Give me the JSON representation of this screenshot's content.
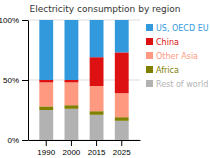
{
  "chart_data": {
    "type": "bar",
    "stacked": true,
    "title": "Electricity consumption by region",
    "categories": [
      "1990",
      "2000",
      "2015",
      "2025"
    ],
    "series": [
      {
        "name": "Rest of world",
        "color": "#b2b2b2",
        "values": [
          25,
          26,
          21,
          16
        ]
      },
      {
        "name": "Africa",
        "color": "#808000",
        "values": [
          3,
          3,
          3,
          3
        ]
      },
      {
        "name": "Other Asia",
        "color": "#ff9980",
        "values": [
          20,
          19,
          21,
          20
        ]
      },
      {
        "name": "China",
        "color": "#dd1111",
        "values": [
          2,
          2,
          24,
          34
        ]
      },
      {
        "name": "US, OECD EU",
        "color": "#3399dd",
        "values": [
          50,
          50,
          31,
          27
        ]
      }
    ],
    "ylim": [
      0,
      100
    ],
    "yticks": [
      {
        "value": 0,
        "label": "0%"
      },
      {
        "value": 50,
        "label": "50%"
      },
      {
        "value": 100,
        "label": "100%"
      }
    ],
    "grid": true,
    "legend": "right"
  }
}
